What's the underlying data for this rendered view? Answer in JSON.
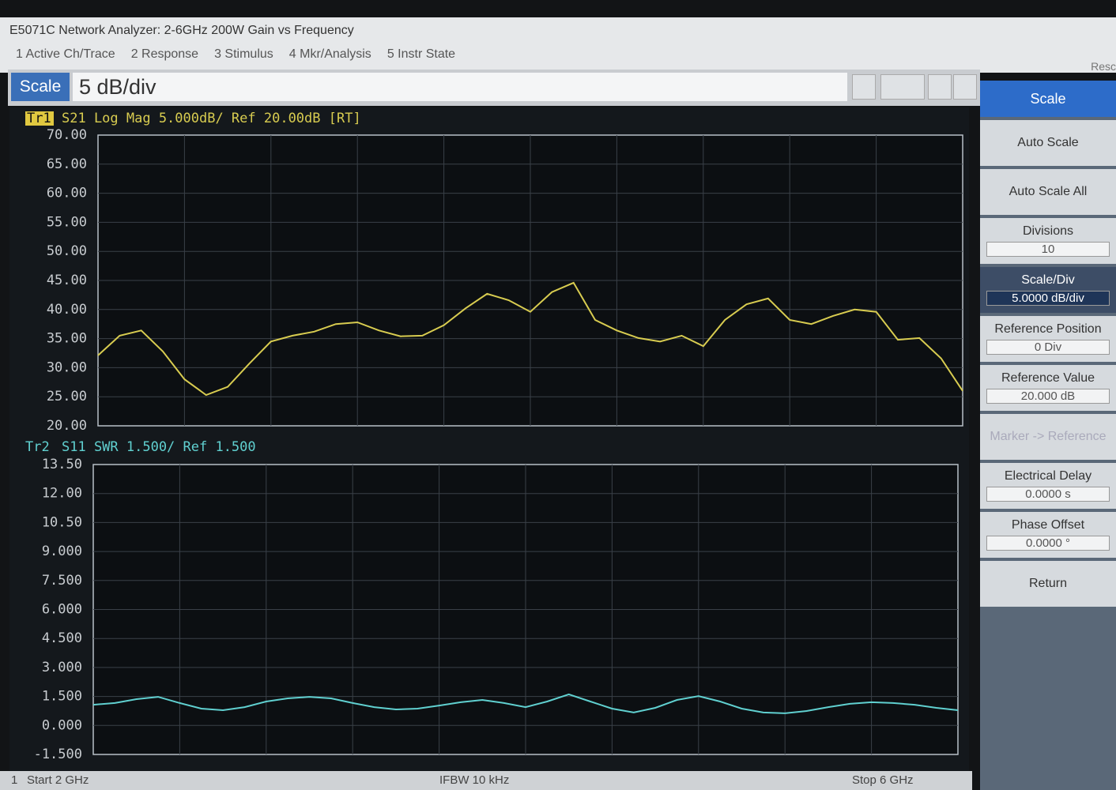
{
  "window": {
    "title": "E5071C Network Analyzer: 2-6GHz 200W Gain vs Frequency",
    "menu": [
      "1 Active Ch/Trace",
      "2 Response",
      "3 Stimulus",
      "4 Mkr/Analysis",
      "5 Instr State"
    ],
    "corner": "Resc"
  },
  "entry": {
    "label": "Scale",
    "value": "5 dB/div"
  },
  "softkeys": {
    "title": "Scale",
    "keys": [
      {
        "label": "Auto Scale"
      },
      {
        "label": "Auto Scale All"
      },
      {
        "label": "Divisions",
        "value": "10"
      },
      {
        "label": "Scale/Div",
        "value": "5.0000 dB/div"
      },
      {
        "label": "Reference Position",
        "value": "0 Div"
      },
      {
        "label": "Reference Value",
        "value": "20.000 dB"
      },
      {
        "label": "Marker -> Reference"
      },
      {
        "label": "Electrical Delay",
        "value": "0.0000 s"
      },
      {
        "label": "Phase Offset",
        "value": "0.0000 °"
      },
      {
        "label": "Return"
      }
    ]
  },
  "chart_data": [
    {
      "type": "line",
      "trace": "Tr1",
      "title": "S21 Log Mag 5.000dB/ Ref 20.00dB [RT]",
      "color": "#d8cc50",
      "xlim": [
        2,
        6
      ],
      "ylim": [
        20,
        70
      ],
      "yticks": [
        {
          "value": 70,
          "label": "70.00"
        },
        {
          "value": 65,
          "label": "65.00"
        },
        {
          "value": 60,
          "label": "60.00"
        },
        {
          "value": 55,
          "label": "55.00"
        },
        {
          "value": 50,
          "label": "50.00"
        },
        {
          "value": 45,
          "label": "45.00"
        },
        {
          "value": 40,
          "label": "40.00"
        },
        {
          "value": 35,
          "label": "35.00"
        },
        {
          "value": 30,
          "label": "30.00"
        },
        {
          "value": 25,
          "label": "25.00"
        },
        {
          "value": 20,
          "label": "20.00"
        }
      ],
      "grid": true,
      "x": [
        2,
        2.1,
        2.2,
        2.3,
        2.4,
        2.5,
        2.6,
        2.7,
        2.8,
        2.9,
        3,
        3.1,
        3.2,
        3.3,
        3.4,
        3.5,
        3.6,
        3.7,
        3.8,
        3.9,
        4,
        4.1,
        4.2,
        4.3,
        4.4,
        4.5,
        4.6,
        4.7,
        4.8,
        4.9,
        5,
        5.1,
        5.2,
        5.3,
        5.4,
        5.5,
        5.6,
        5.7,
        5.8,
        5.9,
        6
      ],
      "values": [
        32.1,
        35.5,
        36.4,
        32.8,
        28,
        25.3,
        26.7,
        30.7,
        34.5,
        35.5,
        36.2,
        37.5,
        37.8,
        36.4,
        35.4,
        35.5,
        37.3,
        40.2,
        42.7,
        41.6,
        39.6,
        43,
        44.6,
        38.2,
        36.4,
        35.1,
        34.5,
        35.5,
        33.7,
        38.2,
        40.9,
        41.9,
        38.2,
        37.5,
        38.9,
        40,
        39.6,
        34.8,
        35.1,
        31.6,
        26
      ]
    },
    {
      "type": "line",
      "trace": "Tr2",
      "title": "S11 SWR 1.500/ Ref 1.500",
      "color": "#60d0d0",
      "xlim": [
        2,
        6
      ],
      "ylim": [
        -1.5,
        13.5
      ],
      "yticks": [
        {
          "value": 13.5,
          "label": "13.50"
        },
        {
          "value": 12,
          "label": "12.00"
        },
        {
          "value": 10.5,
          "label": "10.50"
        },
        {
          "value": 9,
          "label": "9.000"
        },
        {
          "value": 7.5,
          "label": "7.500"
        },
        {
          "value": 6,
          "label": "6.000"
        },
        {
          "value": 4.5,
          "label": "4.500"
        },
        {
          "value": 3,
          "label": "3.000"
        },
        {
          "value": 1.5,
          "label": "1.500"
        },
        {
          "value": 0,
          "label": "0.000"
        },
        {
          "value": -1.5,
          "label": "-1.500"
        }
      ],
      "grid": true,
      "x": [
        2,
        2.1,
        2.2,
        2.3,
        2.4,
        2.5,
        2.6,
        2.7,
        2.8,
        2.9,
        3,
        3.1,
        3.2,
        3.3,
        3.4,
        3.5,
        3.6,
        3.7,
        3.8,
        3.9,
        4,
        4.1,
        4.2,
        4.3,
        4.4,
        4.5,
        4.6,
        4.7,
        4.8,
        4.9,
        5,
        5.1,
        5.2,
        5.3,
        5.4,
        5.5,
        5.6,
        5.7,
        5.8,
        5.9,
        6
      ],
      "values": [
        1.07,
        1.16,
        1.36,
        1.48,
        1.16,
        0.87,
        0.79,
        0.95,
        1.24,
        1.4,
        1.48,
        1.4,
        1.16,
        0.95,
        0.83,
        0.87,
        1.03,
        1.2,
        1.32,
        1.16,
        0.95,
        1.24,
        1.61,
        1.24,
        0.87,
        0.67,
        0.91,
        1.32,
        1.52,
        1.24,
        0.87,
        0.67,
        0.63,
        0.75,
        0.95,
        1.12,
        1.2,
        1.16,
        1.07,
        0.91,
        0.79
      ]
    }
  ],
  "status": {
    "channel": "1",
    "start": "Start 2 GHz",
    "ifbw": "IFBW 10 kHz",
    "stop": "Stop 6 GHz"
  }
}
